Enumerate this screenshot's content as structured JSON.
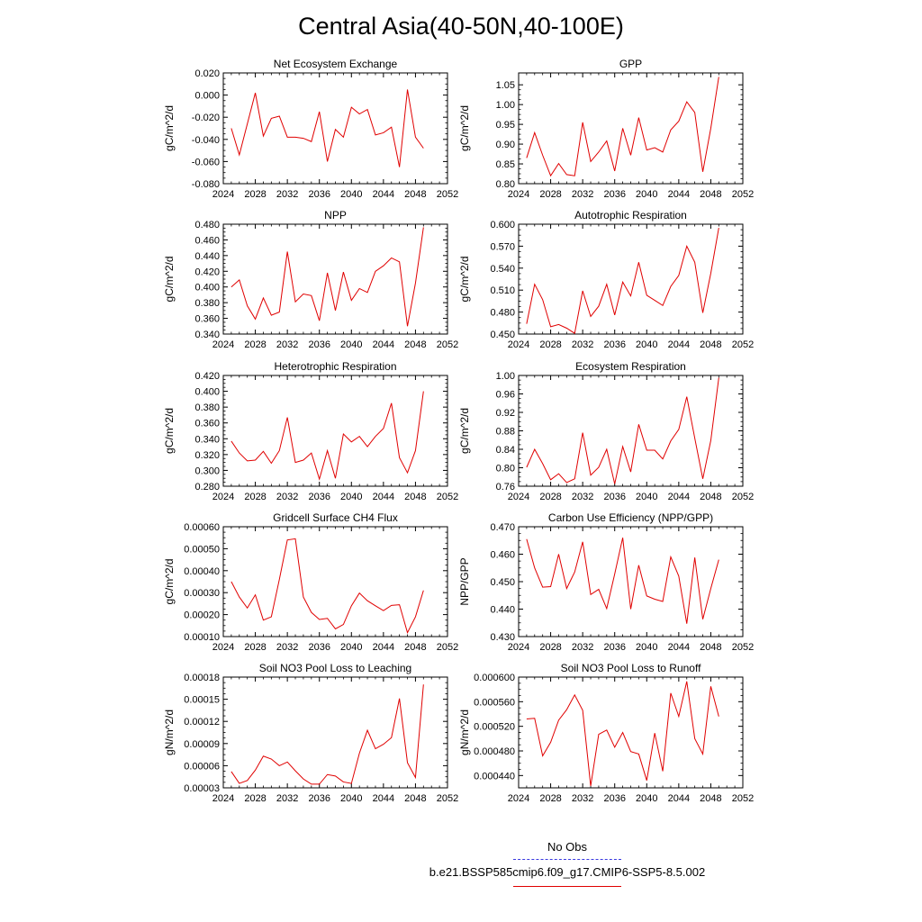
{
  "title": "Central Asia(40-50N,40-100E)",
  "legend": {
    "obs_label": "No Obs",
    "case_label": "b.e21.BSSP585cmip6.f09_g17.CMIP6-SSP5-8.5.002",
    "obs_color": "#3a3ae0",
    "case_color": "#e00000"
  },
  "chart_data": [
    {
      "type": "line",
      "title": "Net Ecosystem Exchange",
      "ylabel": "gC/m^2/d",
      "xlim": [
        2024,
        2052
      ],
      "xticks": [
        "2024",
        "2028",
        "2032",
        "2036",
        "2040",
        "2044",
        "2048",
        "2052"
      ],
      "ylim": [
        -0.08,
        0.02
      ],
      "yticks": [
        "-0.080",
        "-0.060",
        "-0.040",
        "-0.020",
        "0.000",
        "0.020"
      ],
      "x": [
        2025,
        2026,
        2027,
        2028,
        2029,
        2030,
        2031,
        2032,
        2033,
        2034,
        2035,
        2036,
        2037,
        2038,
        2039,
        2040,
        2041,
        2042,
        2043,
        2044,
        2045,
        2046,
        2047,
        2048,
        2049
      ],
      "values": [
        -0.03,
        -0.054,
        -0.026,
        0.002,
        -0.037,
        -0.021,
        -0.019,
        -0.038,
        -0.038,
        -0.039,
        -0.042,
        -0.015,
        -0.06,
        -0.031,
        -0.038,
        -0.011,
        -0.017,
        -0.013,
        -0.036,
        -0.034,
        -0.029,
        -0.065,
        0.005,
        -0.038,
        -0.048
      ]
    },
    {
      "type": "line",
      "title": "GPP",
      "ylabel": "gC/m^2/d",
      "xlim": [
        2024,
        2052
      ],
      "xticks": [
        "2024",
        "2028",
        "2032",
        "2036",
        "2040",
        "2044",
        "2048",
        "2052"
      ],
      "ylim": [
        0.8,
        1.08
      ],
      "yticks": [
        "0.80",
        "0.85",
        "0.90",
        "0.95",
        "1.00",
        "1.05"
      ],
      "x": [
        2025,
        2026,
        2027,
        2028,
        2029,
        2030,
        2031,
        2032,
        2033,
        2034,
        2035,
        2036,
        2037,
        2038,
        2039,
        2040,
        2041,
        2042,
        2043,
        2044,
        2045,
        2046,
        2047,
        2048,
        2049
      ],
      "values": [
        0.865,
        0.929,
        0.872,
        0.82,
        0.851,
        0.823,
        0.82,
        0.955,
        0.856,
        0.88,
        0.908,
        0.832,
        0.94,
        0.872,
        0.967,
        0.885,
        0.891,
        0.88,
        0.936,
        0.958,
        1.007,
        0.98,
        0.83,
        0.94,
        1.07
      ]
    },
    {
      "type": "line",
      "title": "NPP",
      "ylabel": "gC/m^2/d",
      "xlim": [
        2024,
        2052
      ],
      "xticks": [
        "2024",
        "2028",
        "2032",
        "2036",
        "2040",
        "2044",
        "2048",
        "2052"
      ],
      "ylim": [
        0.34,
        0.48
      ],
      "yticks": [
        "0.340",
        "0.360",
        "0.380",
        "0.400",
        "0.420",
        "0.440",
        "0.460",
        "0.480"
      ],
      "x": [
        2025,
        2026,
        2027,
        2028,
        2029,
        2030,
        2031,
        2032,
        2033,
        2034,
        2035,
        2036,
        2037,
        2038,
        2039,
        2040,
        2041,
        2042,
        2043,
        2044,
        2045,
        2046,
        2047,
        2048,
        2049
      ],
      "values": [
        0.4,
        0.409,
        0.376,
        0.359,
        0.386,
        0.364,
        0.368,
        0.445,
        0.381,
        0.391,
        0.389,
        0.357,
        0.418,
        0.37,
        0.419,
        0.383,
        0.398,
        0.393,
        0.42,
        0.427,
        0.437,
        0.432,
        0.35,
        0.405,
        0.476
      ]
    },
    {
      "type": "line",
      "title": "Autotrophic Respiration",
      "ylabel": "gC/m^2/d",
      "xlim": [
        2024,
        2052
      ],
      "xticks": [
        "2024",
        "2028",
        "2032",
        "2036",
        "2040",
        "2044",
        "2048",
        "2052"
      ],
      "ylim": [
        0.45,
        0.6
      ],
      "yticks": [
        "0.450",
        "0.480",
        "0.510",
        "0.540",
        "0.570",
        "0.600"
      ],
      "x": [
        2025,
        2026,
        2027,
        2028,
        2029,
        2030,
        2031,
        2032,
        2033,
        2034,
        2035,
        2036,
        2037,
        2038,
        2039,
        2040,
        2041,
        2042,
        2043,
        2044,
        2045,
        2046,
        2047,
        2048,
        2049
      ],
      "values": [
        0.464,
        0.518,
        0.497,
        0.46,
        0.463,
        0.458,
        0.451,
        0.509,
        0.474,
        0.488,
        0.518,
        0.476,
        0.521,
        0.502,
        0.548,
        0.503,
        0.496,
        0.489,
        0.515,
        0.53,
        0.57,
        0.548,
        0.479,
        0.533,
        0.595
      ]
    },
    {
      "type": "line",
      "title": "Heterotrophic Respiration",
      "ylabel": "gC/m^2/d",
      "xlim": [
        2024,
        2052
      ],
      "xticks": [
        "2024",
        "2028",
        "2032",
        "2036",
        "2040",
        "2044",
        "2048",
        "2052"
      ],
      "ylim": [
        0.28,
        0.42
      ],
      "yticks": [
        "0.280",
        "0.300",
        "0.320",
        "0.340",
        "0.360",
        "0.380",
        "0.400",
        "0.420"
      ],
      "x": [
        2025,
        2026,
        2027,
        2028,
        2029,
        2030,
        2031,
        2032,
        2033,
        2034,
        2035,
        2036,
        2037,
        2038,
        2039,
        2040,
        2041,
        2042,
        2043,
        2044,
        2045,
        2046,
        2047,
        2048,
        2049
      ],
      "values": [
        0.337,
        0.322,
        0.312,
        0.313,
        0.324,
        0.309,
        0.325,
        0.367,
        0.31,
        0.313,
        0.322,
        0.289,
        0.325,
        0.29,
        0.346,
        0.336,
        0.343,
        0.33,
        0.343,
        0.353,
        0.385,
        0.316,
        0.297,
        0.325,
        0.4
      ]
    },
    {
      "type": "line",
      "title": "Ecosystem Respiration",
      "ylabel": "gC/m^2/d",
      "xlim": [
        2024,
        2052
      ],
      "xticks": [
        "2024",
        "2028",
        "2032",
        "2036",
        "2040",
        "2044",
        "2048",
        "2052"
      ],
      "ylim": [
        0.76,
        1.0
      ],
      "yticks": [
        "0.76",
        "0.80",
        "0.84",
        "0.88",
        "0.92",
        "0.96",
        "1.00"
      ],
      "x": [
        2025,
        2026,
        2027,
        2028,
        2029,
        2030,
        2031,
        2032,
        2033,
        2034,
        2035,
        2036,
        2037,
        2038,
        2039,
        2040,
        2041,
        2042,
        2043,
        2044,
        2045,
        2046,
        2047,
        2048,
        2049
      ],
      "values": [
        0.801,
        0.84,
        0.809,
        0.774,
        0.787,
        0.768,
        0.776,
        0.876,
        0.784,
        0.801,
        0.84,
        0.765,
        0.846,
        0.791,
        0.894,
        0.838,
        0.838,
        0.819,
        0.858,
        0.883,
        0.954,
        0.864,
        0.776,
        0.859,
        0.995
      ]
    },
    {
      "type": "line",
      "title": "Gridcell Surface CH4 Flux",
      "ylabel": "gC/m^2/d",
      "xlim": [
        2024,
        2052
      ],
      "xticks": [
        "2024",
        "2028",
        "2032",
        "2036",
        "2040",
        "2044",
        "2048",
        "2052"
      ],
      "ylim": [
        0.0001,
        0.0006
      ],
      "yticks": [
        "0.00010",
        "0.00020",
        "0.00030",
        "0.00040",
        "0.00050",
        "0.00060"
      ],
      "x": [
        2025,
        2026,
        2027,
        2028,
        2029,
        2030,
        2031,
        2032,
        2033,
        2034,
        2035,
        2036,
        2037,
        2038,
        2039,
        2040,
        2041,
        2042,
        2043,
        2044,
        2045,
        2046,
        2047,
        2048,
        2049
      ],
      "values": [
        0.00035,
        0.00028,
        0.00023,
        0.00029,
        0.000175,
        0.00019,
        0.00036,
        0.00054,
        0.000545,
        0.00028,
        0.00021,
        0.000178,
        0.000183,
        0.000135,
        0.000155,
        0.00024,
        0.000298,
        0.000263,
        0.00024,
        0.000218,
        0.000242,
        0.000245,
        0.000118,
        0.00019,
        0.00031
      ]
    },
    {
      "type": "line",
      "title": "Carbon Use Efficiency (NPP/GPP)",
      "ylabel": "NPP/GPP",
      "xlim": [
        2024,
        2052
      ],
      "xticks": [
        "2024",
        "2028",
        "2032",
        "2036",
        "2040",
        "2044",
        "2048",
        "2052"
      ],
      "ylim": [
        0.43,
        0.47
      ],
      "yticks": [
        "0.430",
        "0.440",
        "0.450",
        "0.460",
        "0.470"
      ],
      "x": [
        2025,
        2026,
        2027,
        2028,
        2029,
        2030,
        2031,
        2032,
        2033,
        2034,
        2035,
        2036,
        2037,
        2038,
        2039,
        2040,
        2041,
        2042,
        2043,
        2044,
        2045,
        2046,
        2047,
        2048,
        2049
      ],
      "values": [
        0.4655,
        0.455,
        0.448,
        0.4482,
        0.46,
        0.4475,
        0.4535,
        0.4645,
        0.4453,
        0.4472,
        0.4402,
        0.4528,
        0.466,
        0.44,
        0.456,
        0.4448,
        0.4436,
        0.4428,
        0.459,
        0.452,
        0.4347,
        0.4588,
        0.4363,
        0.4475,
        0.458
      ]
    },
    {
      "type": "line",
      "title": "Soil NO3 Pool Loss to Leaching",
      "ylabel": "gN/m^2/d",
      "xlim": [
        2024,
        2052
      ],
      "xticks": [
        "2024",
        "2028",
        "2032",
        "2036",
        "2040",
        "2044",
        "2048",
        "2052"
      ],
      "ylim": [
        3e-05,
        0.00018
      ],
      "yticks": [
        "0.00003",
        "0.00006",
        "0.00009",
        "0.00012",
        "0.00015",
        "0.00018"
      ],
      "x": [
        2025,
        2026,
        2027,
        2028,
        2029,
        2030,
        2031,
        2032,
        2033,
        2034,
        2035,
        2036,
        2037,
        2038,
        2039,
        2040,
        2041,
        2042,
        2043,
        2044,
        2045,
        2046,
        2047,
        2048,
        2049
      ],
      "values": [
        5.2e-05,
        3.6e-05,
        4e-05,
        5.4e-05,
        7.3e-05,
        6.9e-05,
        6e-05,
        6.5e-05,
        5.3e-05,
        4.2e-05,
        3.5e-05,
        3.5e-05,
        4.8e-05,
        4.6e-05,
        3.8e-05,
        3.6e-05,
        7.7e-05,
        0.000108,
        8.3e-05,
        8.9e-05,
        9.8e-05,
        0.000151,
        6.4e-05,
        4.4e-05,
        0.00017
      ]
    },
    {
      "type": "line",
      "title": "Soil NO3 Pool Loss to Runoff",
      "ylabel": "gN/m^2/d",
      "xlim": [
        2024,
        2052
      ],
      "xticks": [
        "2024",
        "2028",
        "2032",
        "2036",
        "2040",
        "2044",
        "2048",
        "2052"
      ],
      "ylim": [
        0.00042,
        0.0006
      ],
      "yticks": [
        "0.000440",
        "0.000480",
        "0.000520",
        "0.000560",
        "0.000600"
      ],
      "x": [
        2025,
        2026,
        2027,
        2028,
        2029,
        2030,
        2031,
        2032,
        2033,
        2034,
        2035,
        2036,
        2037,
        2038,
        2039,
        2040,
        2041,
        2042,
        2043,
        2044,
        2045,
        2046,
        2047,
        2048,
        2049
      ],
      "values": [
        0.000532,
        0.000533,
        0.000472,
        0.000494,
        0.00053,
        0.000547,
        0.000571,
        0.000546,
        0.000423,
        0.000507,
        0.000514,
        0.000486,
        0.00051,
        0.000479,
        0.000475,
        0.000432,
        0.000509,
        0.000447,
        0.000574,
        0.000536,
        0.000593,
        0.0005,
        0.000475,
        0.000585,
        0.000536
      ]
    }
  ]
}
